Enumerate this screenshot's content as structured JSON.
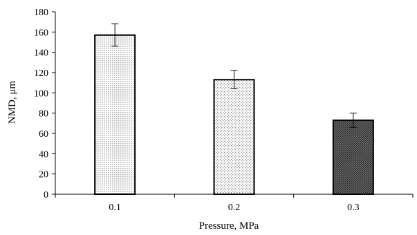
{
  "chart_data": {
    "type": "bar",
    "title": "",
    "xlabel": "Pressure, MPa",
    "ylabel": "NMD, μm",
    "categories": [
      "0.1",
      "0.2",
      "0.3"
    ],
    "values": [
      157,
      113,
      73
    ],
    "error": [
      11,
      9,
      7
    ],
    "ylim": [
      0,
      180
    ],
    "yticks": [
      0,
      20,
      40,
      60,
      80,
      100,
      120,
      140,
      160,
      180
    ],
    "grid": false,
    "legend": "none",
    "bar_patterns": [
      "light-dots",
      "sparse-dots",
      "dark-diagonal"
    ],
    "colors": {
      "axis": "#000000",
      "bar_edge": "#000000",
      "background": "#ffffff"
    }
  }
}
